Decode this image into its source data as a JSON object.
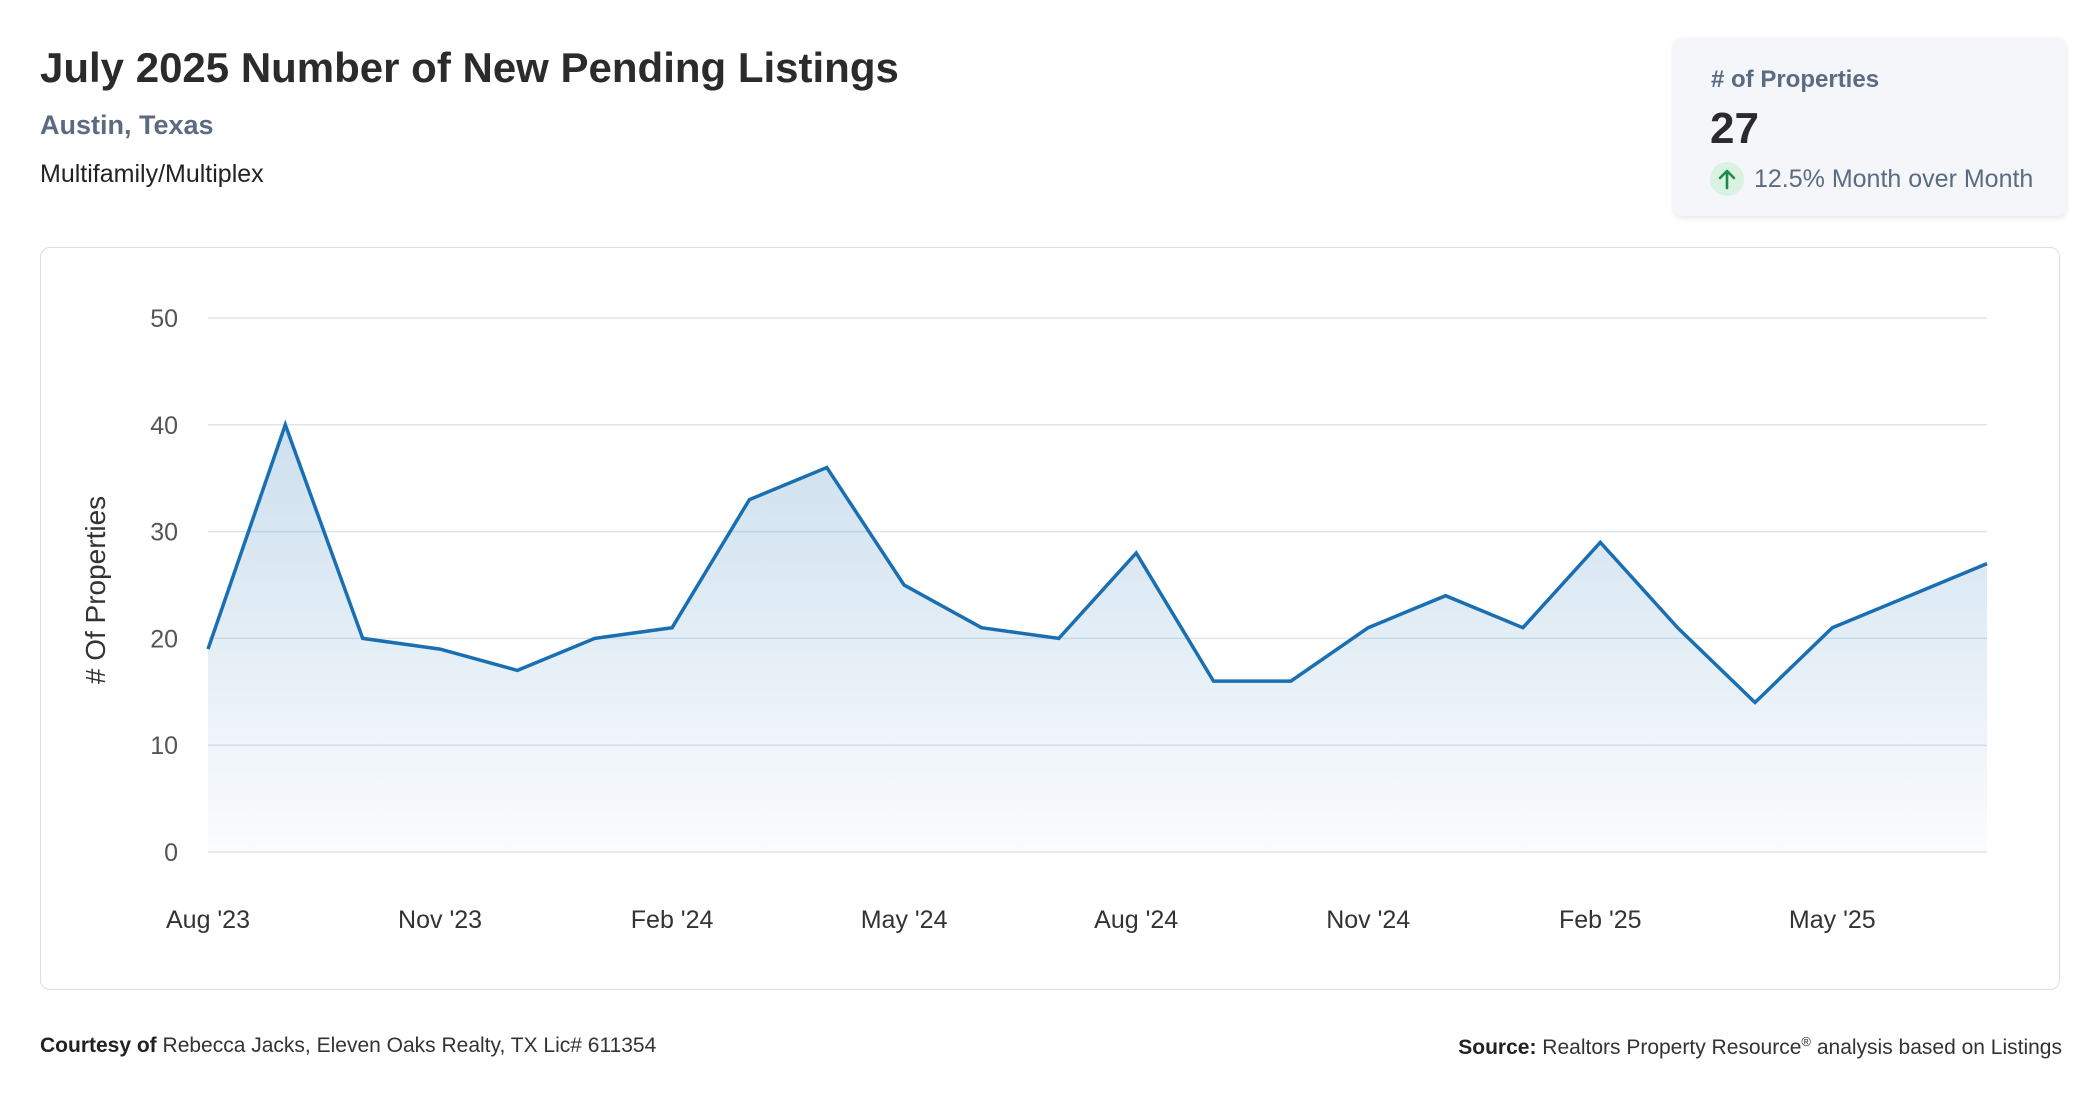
{
  "header": {
    "title": "July 2025 Number of New Pending Listings",
    "location": "Austin, Texas",
    "property_type": "Multifamily/Multiplex"
  },
  "kpi": {
    "label": "# of Properties",
    "value": "27",
    "change": "12.5% Month over Month",
    "direction": "up",
    "up_color": "#1e8a4a"
  },
  "footer": {
    "courtesy_label": "Courtesy of",
    "courtesy_text": "Rebecca Jacks, Eleven Oaks Realty, TX Lic# 611354",
    "source_label": "Source:",
    "source_text_a": "Realtors Property Resource",
    "source_mark": "®",
    "source_text_b": " analysis based on Listings"
  },
  "colors": {
    "line": "#1a6fb3",
    "grid": "#dfe6ea",
    "axis_text": "#555555"
  },
  "chart_data": {
    "type": "area",
    "title": "July 2025 Number of New Pending Listings",
    "xlabel": "",
    "ylabel": "# Of Properties",
    "ylim": [
      0,
      50
    ],
    "yticks": [
      0,
      10,
      20,
      30,
      40,
      50
    ],
    "grid": true,
    "categories": [
      "Aug '23",
      "Sep '23",
      "Oct '23",
      "Nov '23",
      "Dec '23",
      "Jan '24",
      "Feb '24",
      "Mar '24",
      "Apr '24",
      "May '24",
      "Jun '24",
      "Jul '24",
      "Aug '24",
      "Sep '24",
      "Oct '24",
      "Nov '24",
      "Dec '24",
      "Jan '25",
      "Feb '25",
      "Mar '25",
      "Apr '25",
      "May '25",
      "Jun '25",
      "Jul '25"
    ],
    "x_tick_labels": [
      "Aug '23",
      "Nov '23",
      "Feb '24",
      "May '24",
      "Aug '24",
      "Nov '24",
      "Feb '25",
      "May '25"
    ],
    "series": [
      {
        "name": "# of Properties",
        "values": [
          19,
          40,
          20,
          19,
          17,
          20,
          21,
          33,
          36,
          25,
          21,
          20,
          28,
          16,
          16,
          21,
          24,
          21,
          29,
          21,
          14,
          21,
          24,
          27
        ]
      }
    ]
  }
}
